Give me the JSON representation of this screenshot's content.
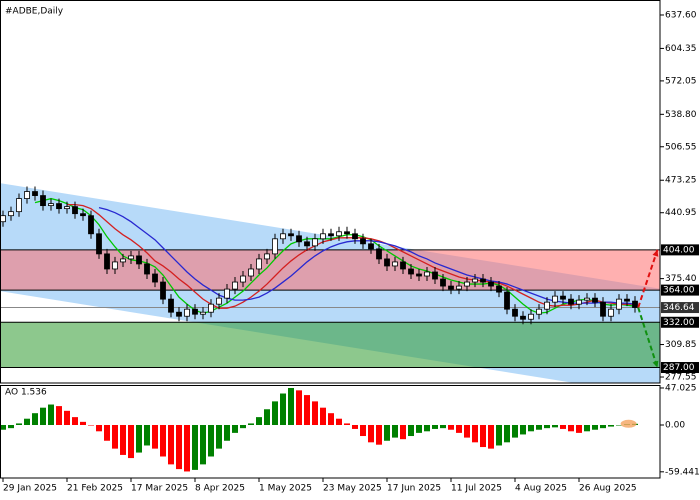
{
  "chart_data": {
    "type": "candlestick",
    "title": "#ADBE,Daily",
    "ylim": [
      271.6,
      652.5
    ],
    "yticks": [
      {
        "value": 637.6,
        "label": "637.60"
      },
      {
        "value": 604.35,
        "label": "604.35"
      },
      {
        "value": 572.05,
        "label": "572.05"
      },
      {
        "value": 538.8,
        "label": "538.80"
      },
      {
        "value": 506.55,
        "label": "506.55"
      },
      {
        "value": 473.25,
        "label": "473.25"
      },
      {
        "value": 440.95,
        "label": "440.95"
      },
      {
        "value": 375.4,
        "label": "375.40"
      },
      {
        "value": 309.85,
        "label": "309.85"
      },
      {
        "value": 277.55,
        "label": "277.55"
      }
    ],
    "xticks": [
      {
        "value": 0,
        "label": "29 Jan 2025"
      },
      {
        "value": 8,
        "label": "21 Feb 2025"
      },
      {
        "value": 16,
        "label": "17 Mar 2025"
      },
      {
        "value": 24,
        "label": "8 Apr 2025"
      },
      {
        "value": 32,
        "label": "1 May 2025"
      },
      {
        "value": 40,
        "label": "23 May 2025"
      },
      {
        "value": 48,
        "label": "17 Jun 2025"
      },
      {
        "value": 56,
        "label": "11 Jul 2025"
      },
      {
        "value": 64,
        "label": "4 Aug 2025"
      },
      {
        "value": 72,
        "label": "26 Aug 2025"
      }
    ],
    "grid": false,
    "open": [
      432,
      438,
      442,
      455,
      462,
      458,
      448,
      450,
      445,
      447,
      440,
      438,
      420,
      400,
      385,
      392,
      395,
      398,
      390,
      380,
      372,
      355,
      342,
      338,
      345,
      340,
      342,
      350,
      356,
      365,
      372,
      378,
      385,
      395,
      400,
      415,
      420,
      418,
      412,
      408,
      415,
      420,
      418,
      422,
      420,
      415,
      410,
      405,
      395,
      388,
      392,
      385,
      380,
      378,
      382,
      375,
      368,
      365,
      368,
      372,
      375,
      372,
      368,
      362,
      345,
      338,
      335,
      340,
      345,
      352,
      358,
      355,
      350,
      354,
      356,
      352,
      338,
      345,
      355,
      353
    ],
    "high": [
      443,
      447,
      460,
      467,
      467,
      463,
      455,
      455,
      452,
      452,
      445,
      443,
      425,
      405,
      397,
      400,
      403,
      403,
      395,
      385,
      377,
      360,
      347,
      350,
      350,
      347,
      355,
      361,
      370,
      377,
      383,
      390,
      400,
      405,
      420,
      425,
      425,
      423,
      417,
      420,
      425,
      425,
      427,
      427,
      425,
      420,
      415,
      410,
      400,
      397,
      397,
      390,
      385,
      387,
      387,
      380,
      373,
      373,
      377,
      380,
      380,
      377,
      373,
      367,
      350,
      343,
      345,
      350,
      357,
      363,
      363,
      360,
      359,
      361,
      361,
      357,
      350,
      360,
      360,
      358
    ],
    "low": [
      427,
      433,
      437,
      450,
      453,
      443,
      443,
      440,
      440,
      435,
      433,
      415,
      395,
      380,
      380,
      387,
      390,
      385,
      375,
      367,
      350,
      337,
      333,
      333,
      335,
      335,
      337,
      345,
      351,
      360,
      367,
      373,
      380,
      390,
      395,
      410,
      413,
      407,
      403,
      403,
      410,
      413,
      413,
      415,
      410,
      405,
      400,
      390,
      383,
      383,
      380,
      375,
      373,
      373,
      370,
      363,
      360,
      360,
      363,
      367,
      367,
      363,
      357,
      340,
      333,
      330,
      330,
      335,
      340,
      347,
      350,
      345,
      345,
      349,
      347,
      333,
      333,
      340,
      348,
      341.64
    ],
    "close": [
      438,
      442,
      455,
      462,
      458,
      448,
      450,
      445,
      447,
      440,
      438,
      420,
      400,
      385,
      392,
      395,
      398,
      390,
      380,
      372,
      355,
      342,
      338,
      345,
      340,
      342,
      350,
      356,
      365,
      372,
      378,
      385,
      395,
      400,
      415,
      420,
      418,
      412,
      408,
      415,
      420,
      418,
      422,
      420,
      415,
      410,
      405,
      395,
      388,
      392,
      385,
      380,
      378,
      382,
      375,
      368,
      365,
      368,
      372,
      375,
      372,
      368,
      362,
      345,
      338,
      335,
      340,
      345,
      352,
      358,
      355,
      350,
      354,
      356,
      352,
      338,
      345,
      355,
      353,
      346.64
    ],
    "series": [
      {
        "color": "#00c800",
        "values": [
          null,
          null,
          null,
          null,
          451,
          453,
          455,
          453,
          450,
          446,
          444,
          438,
          429,
          417,
          407,
          398,
          394,
          393,
          391,
          387,
          379,
          368,
          357,
          350,
          344,
          341,
          343,
          347,
          351,
          357,
          363,
          371,
          379,
          386,
          395,
          403,
          410,
          413,
          415,
          415,
          415,
          415,
          417,
          419,
          419,
          417,
          414,
          408,
          403,
          398,
          393,
          388,
          385,
          383,
          380,
          377,
          374,
          372,
          370,
          370,
          370,
          371,
          369,
          364,
          357,
          350,
          344,
          341,
          342,
          346,
          350,
          352,
          354,
          355,
          353,
          350,
          349,
          350,
          349,
          348
        ]
      },
      {
        "color": "#d42020",
        "values": [
          null,
          null,
          null,
          null,
          null,
          null,
          null,
          null,
          449,
          449,
          448,
          445,
          439,
          432,
          425,
          419,
          414,
          408,
          401,
          393,
          388,
          382,
          375,
          369,
          362,
          355,
          350,
          346,
          346,
          348,
          352,
          357,
          363,
          370,
          378,
          386,
          393,
          399,
          404,
          408,
          412,
          414,
          416,
          416,
          416,
          416,
          415,
          413,
          410,
          406,
          402,
          398,
          394,
          390,
          386,
          383,
          380,
          377,
          375,
          374,
          373,
          372,
          371,
          368,
          364,
          360,
          356,
          352,
          349,
          348,
          349,
          349,
          350,
          352,
          354,
          352,
          351,
          350,
          350,
          350
        ]
      },
      {
        "color": "#2828d0",
        "values": [
          null,
          null,
          null,
          null,
          null,
          null,
          null,
          null,
          null,
          null,
          null,
          null,
          446,
          444,
          441,
          437,
          432,
          426,
          420,
          414,
          406,
          398,
          390,
          382,
          375,
          369,
          364,
          359,
          356,
          354,
          354,
          355,
          357,
          361,
          366,
          372,
          378,
          385,
          392,
          398,
          403,
          407,
          410,
          412,
          413,
          413,
          413,
          412,
          410,
          408,
          405,
          402,
          398,
          395,
          391,
          388,
          385,
          382,
          379,
          377,
          375,
          373,
          372,
          370,
          367,
          364,
          361,
          358,
          355,
          353,
          352,
          351,
          351,
          351,
          351,
          352,
          352,
          351,
          351,
          350
        ]
      }
    ],
    "channel": {
      "x": [
        -0.4,
        82.1
      ],
      "upper": [
        470.4,
        365.4
      ],
      "lower": [
        363,
        258
      ],
      "color": "#aad4f8"
    },
    "zones": [
      {
        "from": 364,
        "to": 404,
        "color": "#ff7070"
      },
      {
        "from": 287,
        "to": 332,
        "color": "#2f9a2f"
      }
    ],
    "levels": [
      {
        "value": 404,
        "label": "404.00"
      },
      {
        "value": 364,
        "label": "364.00"
      },
      {
        "value": 346.64,
        "label": "346.64"
      },
      {
        "value": 332,
        "label": "332.00"
      },
      {
        "value": 287,
        "label": "287.00"
      }
    ],
    "arrows": [
      {
        "to": 404,
        "color": "#e01010"
      },
      {
        "to": 287,
        "color": "#109010"
      }
    ],
    "oscillator": {
      "title": "AO 1.536",
      "ylim": [
        -67.3,
        50.8
      ],
      "yticks": [
        {
          "value": 47.025,
          "label": "47.025"
        },
        {
          "value": 0,
          "label": "0.00"
        },
        {
          "value": -59.441,
          "label": "-59.441"
        }
      ],
      "up_color": "#008000",
      "down_color": "#ff0000",
      "values": [
        -6,
        -4,
        2,
        8,
        15,
        22,
        26,
        24,
        18,
        10,
        4,
        0,
        -8,
        -20,
        -30,
        -38,
        -42,
        -35,
        -26,
        -30,
        -40,
        -50,
        -56,
        -59,
        -57,
        -50,
        -40,
        -30,
        -20,
        -10,
        -4,
        2,
        10,
        20,
        30,
        40,
        47,
        44,
        38,
        30,
        22,
        15,
        8,
        2,
        -5,
        -14,
        -22,
        -25,
        -20,
        -16,
        -18,
        -14,
        -10,
        -8,
        -5,
        -4,
        -6,
        -10,
        -16,
        -22,
        -28,
        -30,
        -26,
        -22,
        -16,
        -12,
        -8,
        -6,
        -4,
        -3,
        -5,
        -8,
        -10,
        -8,
        -6,
        -4,
        -2,
        0,
        1,
        1.536
      ]
    }
  }
}
